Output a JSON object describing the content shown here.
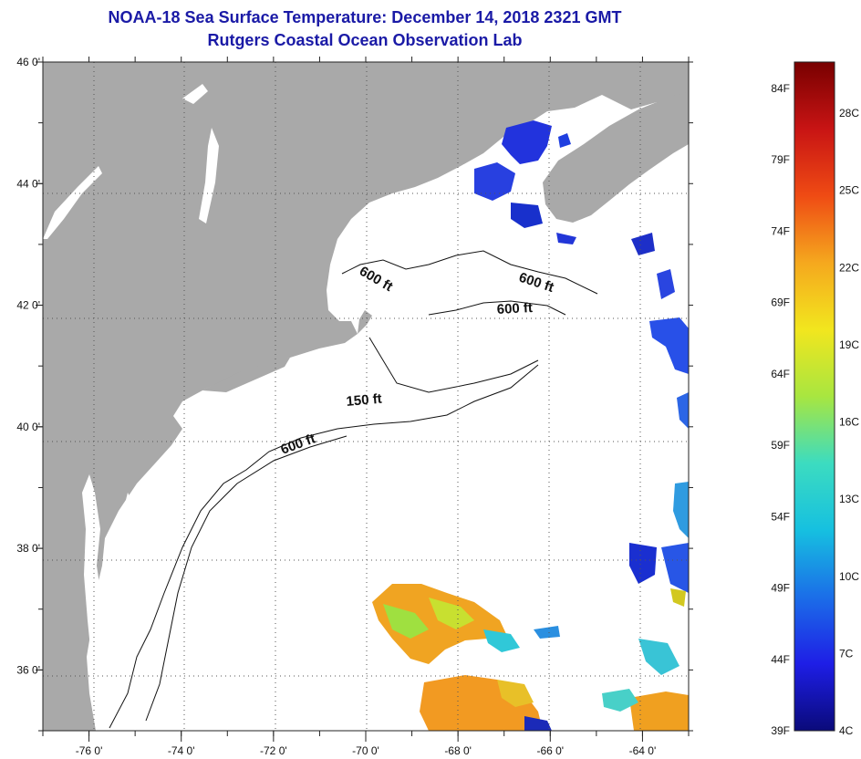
{
  "header": {
    "title": "NOAA-18 Sea Surface Temperature:  December 14, 2018 2321 GMT",
    "subtitle": "Rutgers Coastal Ocean Observation Lab"
  },
  "map": {
    "lon_range": [
      -77,
      -63
    ],
    "lat_range": [
      35,
      46
    ],
    "lon_ticks": [
      {
        "value": -76,
        "label": "-76 0'"
      },
      {
        "value": -74,
        "label": "-74 0'"
      },
      {
        "value": -72,
        "label": "-72 0'"
      },
      {
        "value": -70,
        "label": "-70 0'"
      },
      {
        "value": -68,
        "label": "-68 0'"
      },
      {
        "value": -66,
        "label": "-66 0'"
      },
      {
        "value": -64,
        "label": "-64 0'"
      }
    ],
    "lat_ticks": [
      {
        "value": 46,
        "label": "46 0'"
      },
      {
        "value": 44,
        "label": "44 0'"
      },
      {
        "value": 42,
        "label": "42 0'"
      },
      {
        "value": 40,
        "label": "40 0'"
      },
      {
        "value": 38,
        "label": "38 0'"
      },
      {
        "value": 36,
        "label": "36 0'"
      }
    ],
    "contour_labels": [
      {
        "text": "600 ft"
      },
      {
        "text": "600 ft"
      },
      {
        "text": "600 ft"
      },
      {
        "text": "150 ft"
      },
      {
        "text": "600 ft"
      }
    ],
    "colors": {
      "land": "#a9a9a9",
      "water_nodata": "#ffffff",
      "grid": "#555555"
    }
  },
  "colorbar": {
    "fahrenheit": [
      "84F",
      "79F",
      "74F",
      "69F",
      "64F",
      "59F",
      "54F",
      "49F",
      "44F",
      "39F"
    ],
    "celsius": [
      "28C",
      "25C",
      "22C",
      "19C",
      "16C",
      "13C",
      "10C",
      "7C",
      "4C"
    ],
    "colors": [
      "#0a0a7a",
      "#1e1ee6",
      "#1b6ee8",
      "#16c0e0",
      "#3cdcc0",
      "#a8e640",
      "#f2e61e",
      "#f5a81e",
      "#ef4b14",
      "#c81414",
      "#780000"
    ]
  }
}
